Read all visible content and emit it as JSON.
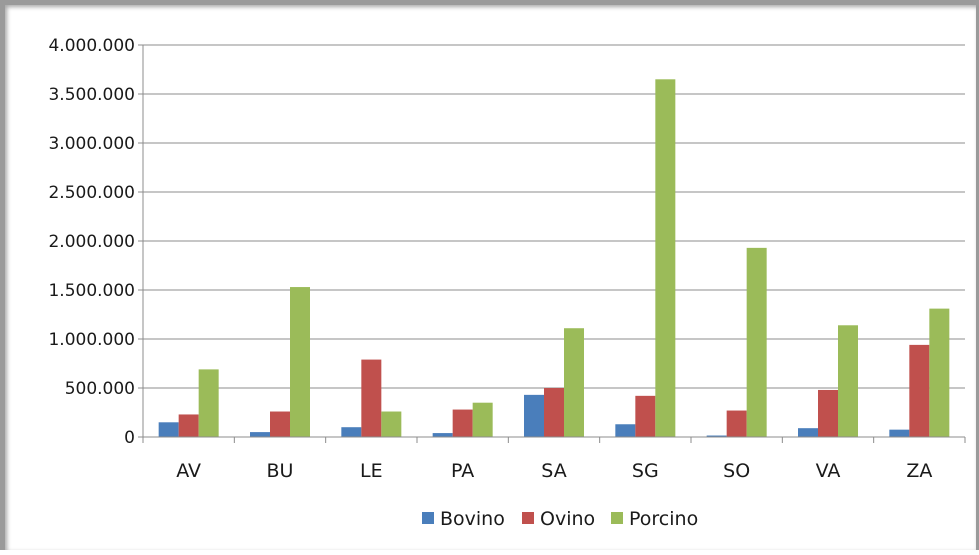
{
  "chart_data": {
    "type": "bar",
    "categories": [
      "AV",
      "BU",
      "LE",
      "PA",
      "SA",
      "SG",
      "SO",
      "VA",
      "ZA"
    ],
    "series": [
      {
        "name": "Bovino",
        "color": "#4a7ebb",
        "values": [
          150000,
          50000,
          100000,
          40000,
          430000,
          130000,
          15000,
          90000,
          75000
        ]
      },
      {
        "name": "Ovino",
        "color": "#c0504d",
        "values": [
          230000,
          260000,
          790000,
          280000,
          500000,
          420000,
          270000,
          480000,
          940000
        ]
      },
      {
        "name": "Porcino",
        "color": "#9bbb59",
        "values": [
          690000,
          1530000,
          260000,
          350000,
          1110000,
          3650000,
          1930000,
          1140000,
          1310000
        ]
      }
    ],
    "yticks": [
      "0",
      "500.000",
      "1.000.000",
      "1.500.000",
      "2.000.000",
      "2.500.000",
      "3.000.000",
      "3.500.000",
      "4.000.000"
    ],
    "ylim": [
      0,
      4000000
    ],
    "grid": true,
    "legend_position": "bottom"
  }
}
